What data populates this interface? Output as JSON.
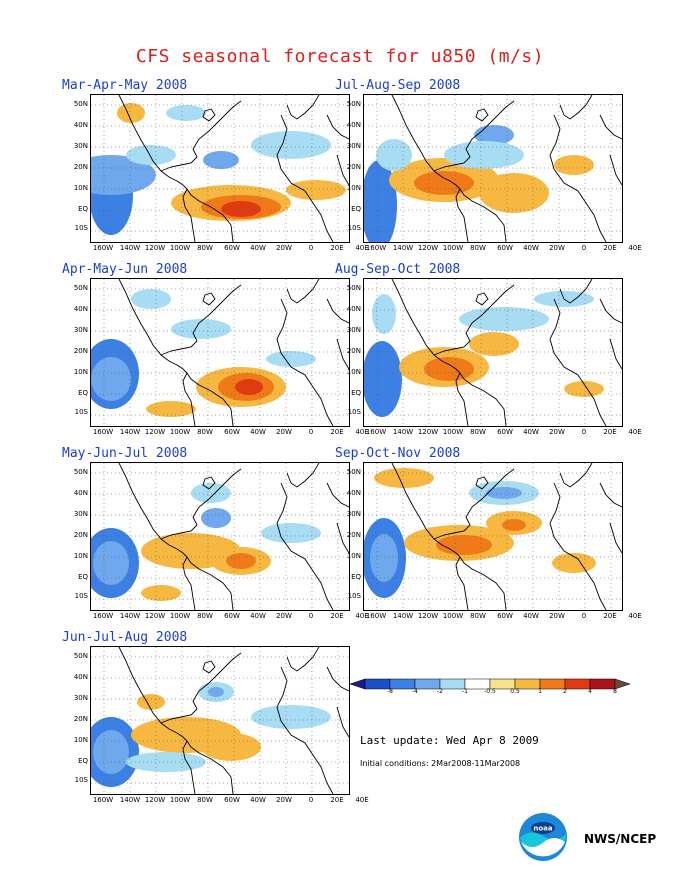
{
  "title": "CFS seasonal forecast for u850 (m/s)",
  "y_labels": [
    "50N",
    "40N",
    "30N",
    "20N",
    "10N",
    "EQ",
    "10S"
  ],
  "x_labels": [
    "160W",
    "140W",
    "120W",
    "100W",
    "80W",
    "60W",
    "40W",
    "20W",
    "0",
    "20E",
    "40E"
  ],
  "panels": [
    {
      "title": "Mar-Apr-May 2008"
    },
    {
      "title": "Jul-Aug-Sep 2008"
    },
    {
      "title": "Apr-May-Jun 2008"
    },
    {
      "title": "Aug-Sep-Oct 2008"
    },
    {
      "title": "May-Jun-Jul 2008"
    },
    {
      "title": "Sep-Oct-Nov 2008"
    },
    {
      "title": "Jun-Jul-Aug 2008"
    }
  ],
  "colorbar": {
    "levels": [
      "-8",
      "-4",
      "-2",
      "-1",
      "-0.5",
      "0.5",
      "1",
      "2",
      "4",
      "8"
    ],
    "colors": [
      "#1c1a8c",
      "#1b4fc9",
      "#3d80e3",
      "#6fa8ec",
      "#a8dcf3",
      "#ffffff",
      "#f9e08a",
      "#f7b842",
      "#f07a17",
      "#e03a10",
      "#a8141a",
      "#6b4a3a"
    ]
  },
  "last_update": "Last update: Wed Apr 8 2009",
  "initial_conditions": "Initial conditions: 2Mar2008-11Mar2008",
  "agency": "NWS/NCEP",
  "logo_text": "noaa",
  "colors": {
    "title": "#e0201c",
    "panel_title": "#1a3fd0"
  }
}
